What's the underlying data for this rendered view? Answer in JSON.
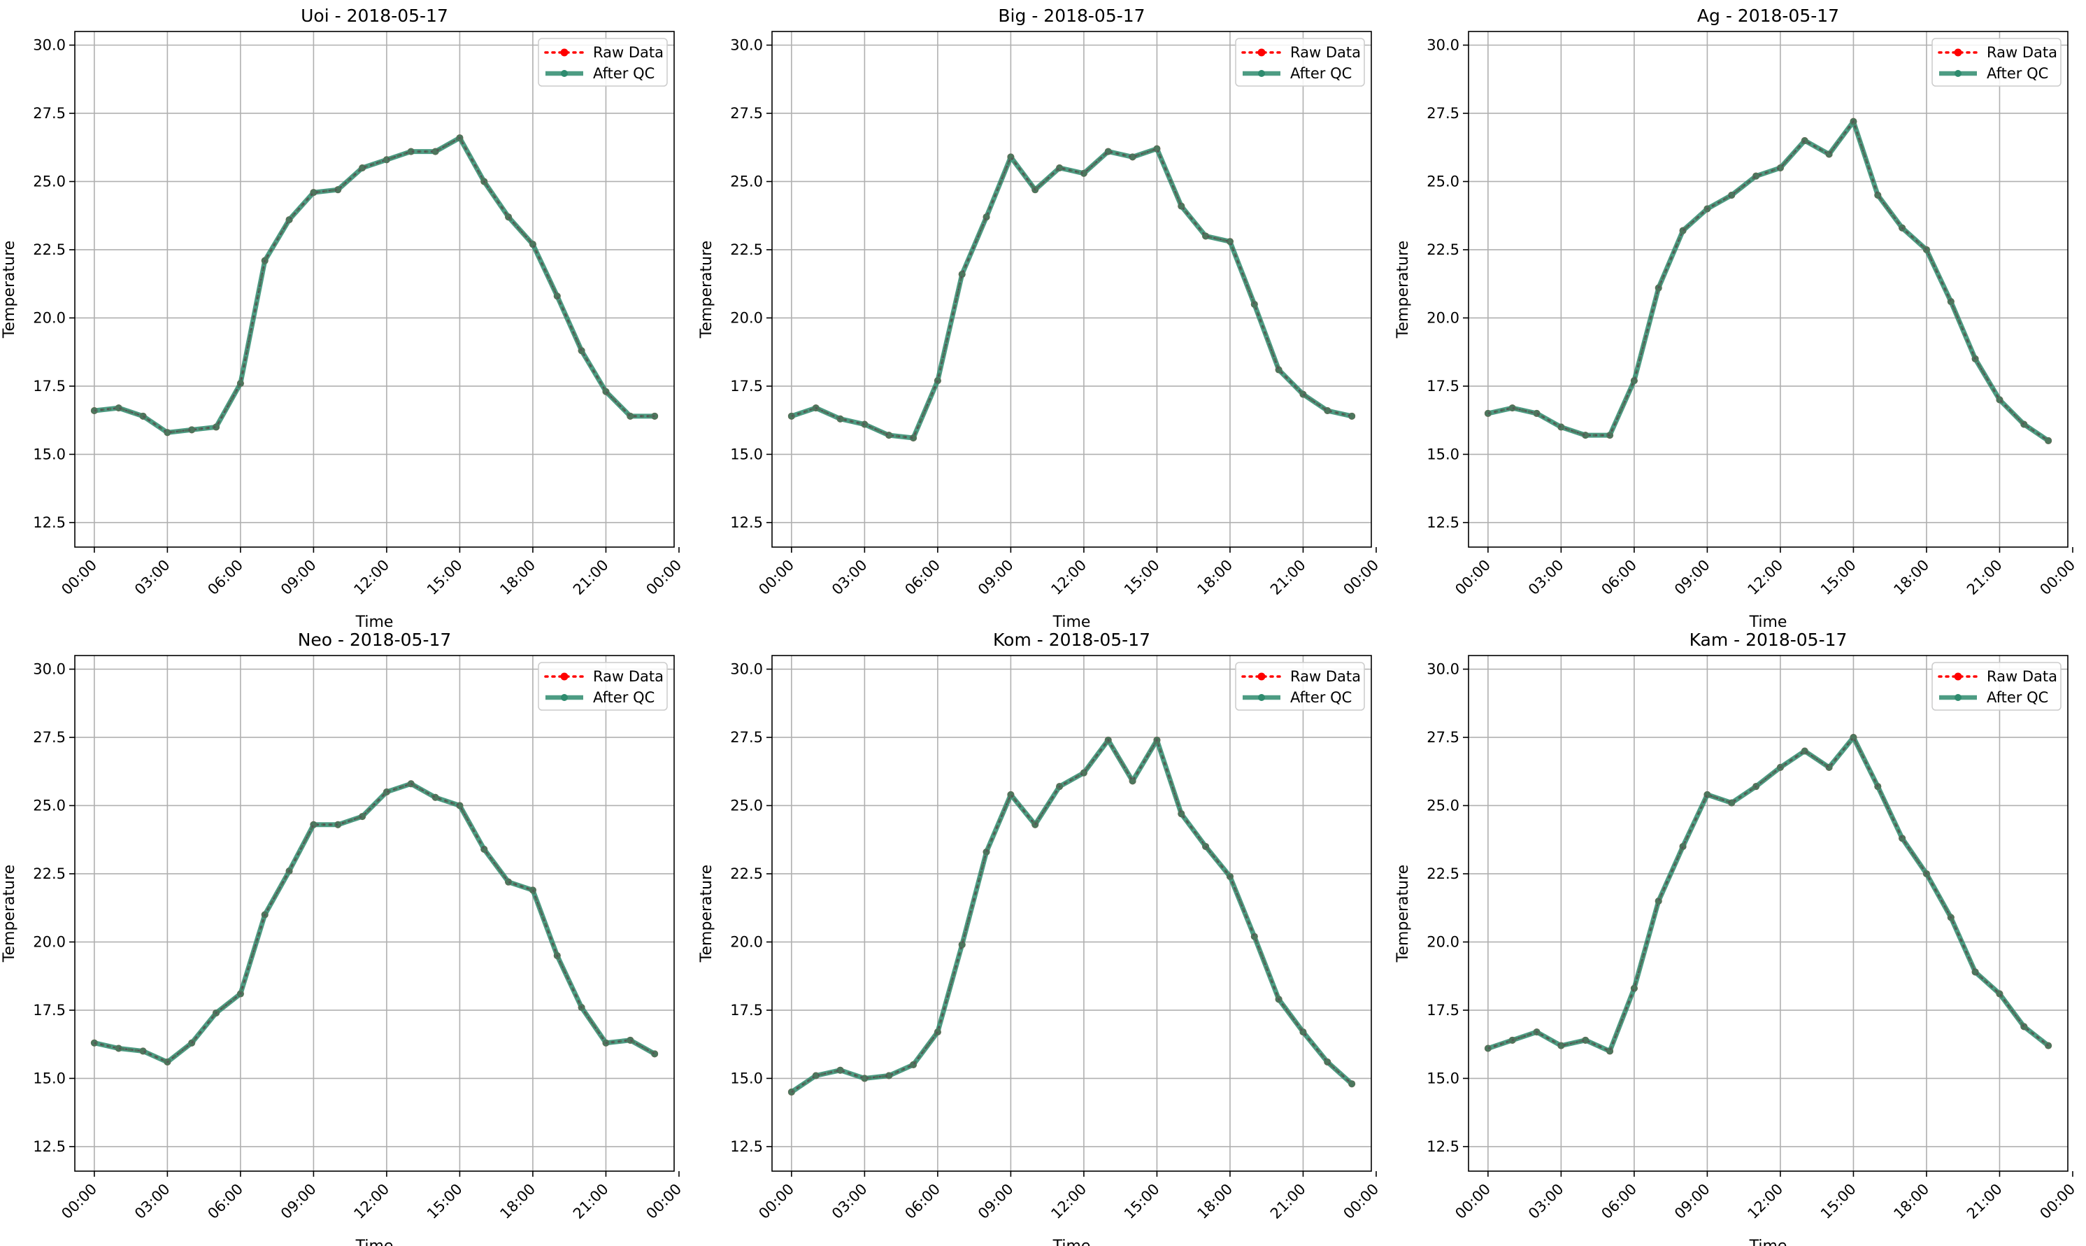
{
  "colors": {
    "raw": "#ff0000",
    "qc": "#2e8b6e",
    "grid": "#b0b0b0",
    "axis": "#000000"
  },
  "legend": {
    "raw_label": "Raw Data",
    "qc_label": "After QC",
    "placement": "top-right"
  },
  "chart_data": [
    {
      "type": "line",
      "title": "Uoi - 2018-05-17",
      "xlabel": "Time",
      "ylabel": "Temperature",
      "xlim": [
        -0.8,
        23.8
      ],
      "ylim": [
        11.6,
        30.5
      ],
      "grid": true,
      "xticks": [
        0,
        3,
        6,
        9,
        12,
        15,
        18,
        21,
        24
      ],
      "xtick_labels": [
        "00:00",
        "03:00",
        "06:00",
        "09:00",
        "12:00",
        "15:00",
        "18:00",
        "21:00",
        "00:00"
      ],
      "yticks": [
        12.5,
        15.0,
        17.5,
        20.0,
        22.5,
        25.0,
        27.5,
        30.0
      ],
      "ytick_labels": [
        "12.5",
        "15.0",
        "17.5",
        "20.0",
        "22.5",
        "25.0",
        "27.5",
        "30.0"
      ],
      "x": [
        0,
        1,
        2,
        3,
        4,
        5,
        6,
        7,
        8,
        9,
        10,
        11,
        12,
        13,
        14,
        15,
        16,
        17,
        18,
        19,
        20,
        21,
        22,
        23
      ],
      "series": [
        {
          "name": "Raw Data",
          "values": [
            16.6,
            16.7,
            16.4,
            15.8,
            15.9,
            16.0,
            17.6,
            22.1,
            23.6,
            24.6,
            24.7,
            25.5,
            25.8,
            26.1,
            26.1,
            26.6,
            25.0,
            23.7,
            22.7,
            20.8,
            18.8,
            17.3,
            16.4,
            16.4
          ]
        },
        {
          "name": "After QC",
          "values": [
            16.6,
            16.7,
            16.4,
            15.8,
            15.9,
            16.0,
            17.6,
            22.1,
            23.6,
            24.6,
            24.7,
            25.5,
            25.8,
            26.1,
            26.1,
            26.6,
            25.0,
            23.7,
            22.7,
            20.8,
            18.8,
            17.3,
            16.4,
            16.4
          ]
        }
      ]
    },
    {
      "type": "line",
      "title": "Big - 2018-05-17",
      "xlabel": "Time",
      "ylabel": "Temperature",
      "xlim": [
        -0.8,
        23.8
      ],
      "ylim": [
        11.6,
        30.5
      ],
      "grid": true,
      "xticks": [
        0,
        3,
        6,
        9,
        12,
        15,
        18,
        21,
        24
      ],
      "xtick_labels": [
        "00:00",
        "03:00",
        "06:00",
        "09:00",
        "12:00",
        "15:00",
        "18:00",
        "21:00",
        "00:00"
      ],
      "yticks": [
        12.5,
        15.0,
        17.5,
        20.0,
        22.5,
        25.0,
        27.5,
        30.0
      ],
      "ytick_labels": [
        "12.5",
        "15.0",
        "17.5",
        "20.0",
        "22.5",
        "25.0",
        "27.5",
        "30.0"
      ],
      "x": [
        0,
        1,
        2,
        3,
        4,
        5,
        6,
        7,
        8,
        9,
        10,
        11,
        12,
        13,
        14,
        15,
        16,
        17,
        18,
        19,
        20,
        21,
        22,
        23
      ],
      "series": [
        {
          "name": "Raw Data",
          "values": [
            16.4,
            16.7,
            16.3,
            16.1,
            15.7,
            15.6,
            17.7,
            21.6,
            23.7,
            25.9,
            24.7,
            25.5,
            25.3,
            26.1,
            25.9,
            26.2,
            24.1,
            23.0,
            22.8,
            20.5,
            18.1,
            17.2,
            16.6,
            16.4
          ]
        },
        {
          "name": "After QC",
          "values": [
            16.4,
            16.7,
            16.3,
            16.1,
            15.7,
            15.6,
            17.7,
            21.6,
            23.7,
            25.9,
            24.7,
            25.5,
            25.3,
            26.1,
            25.9,
            26.2,
            24.1,
            23.0,
            22.8,
            20.5,
            18.1,
            17.2,
            16.6,
            16.4
          ]
        }
      ]
    },
    {
      "type": "line",
      "title": "Ag - 2018-05-17",
      "xlabel": "Time",
      "ylabel": "Temperature",
      "xlim": [
        -0.8,
        23.8
      ],
      "ylim": [
        11.6,
        30.5
      ],
      "grid": true,
      "xticks": [
        0,
        3,
        6,
        9,
        12,
        15,
        18,
        21,
        24
      ],
      "xtick_labels": [
        "00:00",
        "03:00",
        "06:00",
        "09:00",
        "12:00",
        "15:00",
        "18:00",
        "21:00",
        "00:00"
      ],
      "yticks": [
        12.5,
        15.0,
        17.5,
        20.0,
        22.5,
        25.0,
        27.5,
        30.0
      ],
      "ytick_labels": [
        "12.5",
        "15.0",
        "17.5",
        "20.0",
        "22.5",
        "25.0",
        "27.5",
        "30.0"
      ],
      "x": [
        0,
        1,
        2,
        3,
        4,
        5,
        6,
        7,
        8,
        9,
        10,
        11,
        12,
        13,
        14,
        15,
        16,
        17,
        18,
        19,
        20,
        21,
        22,
        23
      ],
      "series": [
        {
          "name": "Raw Data",
          "values": [
            16.5,
            16.7,
            16.5,
            16.0,
            15.7,
            15.7,
            17.7,
            21.1,
            23.2,
            24.0,
            24.5,
            25.2,
            25.5,
            26.5,
            26.0,
            27.2,
            24.5,
            23.3,
            22.5,
            20.6,
            18.5,
            17.0,
            16.1,
            15.5
          ]
        },
        {
          "name": "After QC",
          "values": [
            16.5,
            16.7,
            16.5,
            16.0,
            15.7,
            15.7,
            17.7,
            21.1,
            23.2,
            24.0,
            24.5,
            25.2,
            25.5,
            26.5,
            26.0,
            27.2,
            24.5,
            23.3,
            22.5,
            20.6,
            18.5,
            17.0,
            16.1,
            15.5
          ]
        }
      ]
    },
    {
      "type": "line",
      "title": "Neo - 2018-05-17",
      "xlabel": "Time",
      "ylabel": "Temperature",
      "xlim": [
        -0.8,
        23.8
      ],
      "ylim": [
        11.6,
        30.5
      ],
      "grid": true,
      "xticks": [
        0,
        3,
        6,
        9,
        12,
        15,
        18,
        21,
        24
      ],
      "xtick_labels": [
        "00:00",
        "03:00",
        "06:00",
        "09:00",
        "12:00",
        "15:00",
        "18:00",
        "21:00",
        "00:00"
      ],
      "yticks": [
        12.5,
        15.0,
        17.5,
        20.0,
        22.5,
        25.0,
        27.5,
        30.0
      ],
      "ytick_labels": [
        "12.5",
        "15.0",
        "17.5",
        "20.0",
        "22.5",
        "25.0",
        "27.5",
        "30.0"
      ],
      "x": [
        0,
        1,
        2,
        3,
        4,
        5,
        6,
        7,
        8,
        9,
        10,
        11,
        12,
        13,
        14,
        15,
        16,
        17,
        18,
        19,
        20,
        21,
        22,
        23
      ],
      "series": [
        {
          "name": "Raw Data",
          "values": [
            16.3,
            16.1,
            16.0,
            15.6,
            16.3,
            17.4,
            18.1,
            21.0,
            22.6,
            24.3,
            24.3,
            24.6,
            25.5,
            25.8,
            25.3,
            25.0,
            23.4,
            22.2,
            21.9,
            19.5,
            17.6,
            16.3,
            16.4,
            15.9
          ]
        },
        {
          "name": "After QC",
          "values": [
            16.3,
            16.1,
            16.0,
            15.6,
            16.3,
            17.4,
            18.1,
            21.0,
            22.6,
            24.3,
            24.3,
            24.6,
            25.5,
            25.8,
            25.3,
            25.0,
            23.4,
            22.2,
            21.9,
            19.5,
            17.6,
            16.3,
            16.4,
            15.9
          ]
        }
      ]
    },
    {
      "type": "line",
      "title": "Kom - 2018-05-17",
      "xlabel": "Time",
      "ylabel": "Temperature",
      "xlim": [
        -0.8,
        23.8
      ],
      "ylim": [
        11.6,
        30.5
      ],
      "grid": true,
      "xticks": [
        0,
        3,
        6,
        9,
        12,
        15,
        18,
        21,
        24
      ],
      "xtick_labels": [
        "00:00",
        "03:00",
        "06:00",
        "09:00",
        "12:00",
        "15:00",
        "18:00",
        "21:00",
        "00:00"
      ],
      "yticks": [
        12.5,
        15.0,
        17.5,
        20.0,
        22.5,
        25.0,
        27.5,
        30.0
      ],
      "ytick_labels": [
        "12.5",
        "15.0",
        "17.5",
        "20.0",
        "22.5",
        "25.0",
        "27.5",
        "30.0"
      ],
      "x": [
        0,
        1,
        2,
        3,
        4,
        5,
        6,
        7,
        8,
        9,
        10,
        11,
        12,
        13,
        14,
        15,
        16,
        17,
        18,
        19,
        20,
        21,
        22,
        23
      ],
      "series": [
        {
          "name": "Raw Data",
          "values": [
            14.5,
            15.1,
            15.3,
            15.0,
            15.1,
            15.5,
            16.7,
            19.9,
            23.3,
            25.4,
            24.3,
            25.7,
            26.2,
            27.4,
            25.9,
            27.4,
            24.7,
            23.5,
            22.4,
            20.2,
            17.9,
            16.7,
            15.6,
            14.8
          ]
        },
        {
          "name": "After QC",
          "values": [
            14.5,
            15.1,
            15.3,
            15.0,
            15.1,
            15.5,
            16.7,
            19.9,
            23.3,
            25.4,
            24.3,
            25.7,
            26.2,
            27.4,
            25.9,
            27.4,
            24.7,
            23.5,
            22.4,
            20.2,
            17.9,
            16.7,
            15.6,
            14.8
          ]
        }
      ]
    },
    {
      "type": "line",
      "title": "Kam - 2018-05-17",
      "xlabel": "Time",
      "ylabel": "Temperature",
      "xlim": [
        -0.8,
        23.8
      ],
      "ylim": [
        11.6,
        30.5
      ],
      "grid": true,
      "xticks": [
        0,
        3,
        6,
        9,
        12,
        15,
        18,
        21,
        24
      ],
      "xtick_labels": [
        "00:00",
        "03:00",
        "06:00",
        "09:00",
        "12:00",
        "15:00",
        "18:00",
        "21:00",
        "00:00"
      ],
      "yticks": [
        12.5,
        15.0,
        17.5,
        20.0,
        22.5,
        25.0,
        27.5,
        30.0
      ],
      "ytick_labels": [
        "12.5",
        "15.0",
        "17.5",
        "20.0",
        "22.5",
        "25.0",
        "27.5",
        "30.0"
      ],
      "x": [
        0,
        1,
        2,
        3,
        4,
        5,
        6,
        7,
        8,
        9,
        10,
        11,
        12,
        13,
        14,
        15,
        16,
        17,
        18,
        19,
        20,
        21,
        22,
        23
      ],
      "series": [
        {
          "name": "Raw Data",
          "values": [
            16.1,
            16.4,
            16.7,
            16.2,
            16.4,
            16.0,
            18.3,
            21.5,
            23.5,
            25.4,
            25.1,
            25.7,
            26.4,
            27.0,
            26.4,
            27.5,
            25.7,
            23.8,
            22.5,
            20.9,
            18.9,
            18.1,
            16.9,
            16.2
          ]
        },
        {
          "name": "After QC",
          "values": [
            16.1,
            16.4,
            16.7,
            16.2,
            16.4,
            16.0,
            18.3,
            21.5,
            23.5,
            25.4,
            25.1,
            25.7,
            26.4,
            27.0,
            26.4,
            27.5,
            25.7,
            23.8,
            22.5,
            20.9,
            18.9,
            18.1,
            16.9,
            16.2
          ]
        }
      ]
    }
  ]
}
